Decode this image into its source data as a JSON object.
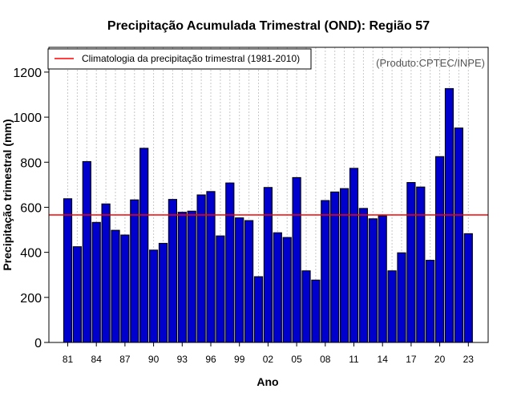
{
  "chart_data": {
    "type": "bar",
    "title": "Precipitação Acumulada Trimestral (OND): Região 57",
    "xlabel": "Ano",
    "ylabel": "Precipitação trimestral (mm)",
    "ylim": [
      0,
      1310
    ],
    "yticks": [
      0,
      200,
      400,
      600,
      800,
      1000,
      1200
    ],
    "xtick_labels": [
      "81",
      "84",
      "87",
      "90",
      "93",
      "96",
      "99",
      "02",
      "05",
      "08",
      "11",
      "14",
      "17",
      "20",
      "23"
    ],
    "categories": [
      "1981",
      "1982",
      "1983",
      "1984",
      "1985",
      "1986",
      "1987",
      "1988",
      "1989",
      "1990",
      "1991",
      "1992",
      "1993",
      "1994",
      "1995",
      "1996",
      "1997",
      "1998",
      "1999",
      "2000",
      "2001",
      "2002",
      "2003",
      "2004",
      "2005",
      "2006",
      "2007",
      "2008",
      "2009",
      "2010",
      "2011",
      "2012",
      "2013",
      "2014",
      "2015",
      "2016",
      "2017",
      "2018",
      "2019",
      "2020",
      "2021",
      "2022",
      "2023"
    ],
    "values": [
      638,
      425,
      803,
      533,
      615,
      498,
      477,
      633,
      862,
      410,
      440,
      635,
      578,
      583,
      655,
      670,
      473,
      708,
      553,
      541,
      292,
      688,
      487,
      466,
      732,
      318,
      277,
      630,
      668,
      683,
      773,
      595,
      549,
      562,
      318,
      398,
      710,
      690,
      365,
      825,
      1127,
      952,
      483
    ],
    "reference_line": {
      "label": "Climatologia da precipitação trimestral (1981-2010)",
      "value": 566
    },
    "credit": "(Produto:CPTEC/INPE)",
    "legend_position": "top-left",
    "grid": "vertical-dotted",
    "colors": {
      "bar": "#0000cc",
      "reference": "#ff0000"
    }
  }
}
